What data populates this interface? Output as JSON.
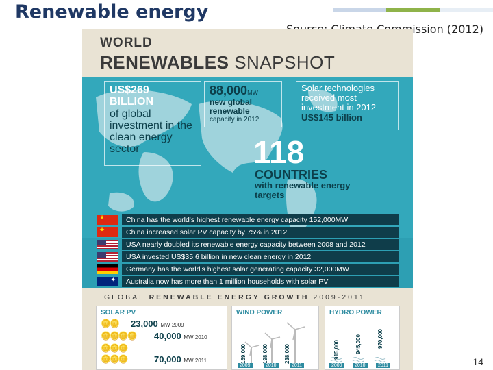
{
  "slide": {
    "title": "Renewable energy",
    "source": "Source: Climate Commission (2012)",
    "page_number": "14",
    "accent_colors": [
      "#1f3864",
      "#8fb34a",
      "#c9d6e8"
    ]
  },
  "infographic": {
    "header_line1": "WORLD",
    "header_line2_bold": "RENEWABLES",
    "header_line2_light": "SNAPSHOT",
    "investment": {
      "amount": "US$269",
      "unit": "BILLION",
      "desc": "of global investment in the clean energy sector"
    },
    "new_capacity": {
      "amount": "88,000",
      "unit": "MW",
      "desc": "new global renewable",
      "sub": "capacity in 2012"
    },
    "solar_invest": {
      "desc": "Solar technologies received most investment in 2012",
      "amount": "US$145 billion"
    },
    "countries": {
      "number": "118",
      "line1": "COUNTRIES",
      "line2": "with renewable energy targets"
    },
    "facts": [
      {
        "flag": "china-flag",
        "text": "China has the world's highest renewable energy capacity 152,000MW"
      },
      {
        "flag": "china-flag",
        "text": "China increased solar PV capacity by 75% in 2012"
      },
      {
        "flag": "usa-flag",
        "text": "USA nearly doubled its renewable energy capacity between 2008 and 2012"
      },
      {
        "flag": "usa-flag",
        "text": "USA invested US$35.6 billion in new clean energy in 2012"
      },
      {
        "flag": "germany-flag",
        "text": "Germany has the world's highest solar generating capacity 32,000MW"
      },
      {
        "flag": "australia-flag",
        "text": "Australia now has more than 1 million households with solar PV"
      }
    ],
    "growth": {
      "title_a": "GLOBAL",
      "title_b": "RENEWABLE ENERGY GROWTH",
      "title_c": "2009-2011",
      "solar": {
        "label": "SOLAR PV",
        "rows": [
          {
            "value": "23,000",
            "unit": "MW 2009"
          },
          {
            "value": "40,000",
            "unit": "MW 2010"
          },
          {
            "value": "70,000",
            "unit": "MW 2011"
          }
        ]
      },
      "wind": {
        "label": "WIND POWER",
        "values": [
          "159,000",
          "198,000",
          "238,000"
        ],
        "years": [
          "2009",
          "2010",
          "2011"
        ]
      },
      "hydro": {
        "label": "HYDRO POWER",
        "values": [
          "915,000",
          "945,000",
          "970,000"
        ],
        "years": [
          "2009",
          "2010",
          "2011"
        ]
      }
    }
  }
}
